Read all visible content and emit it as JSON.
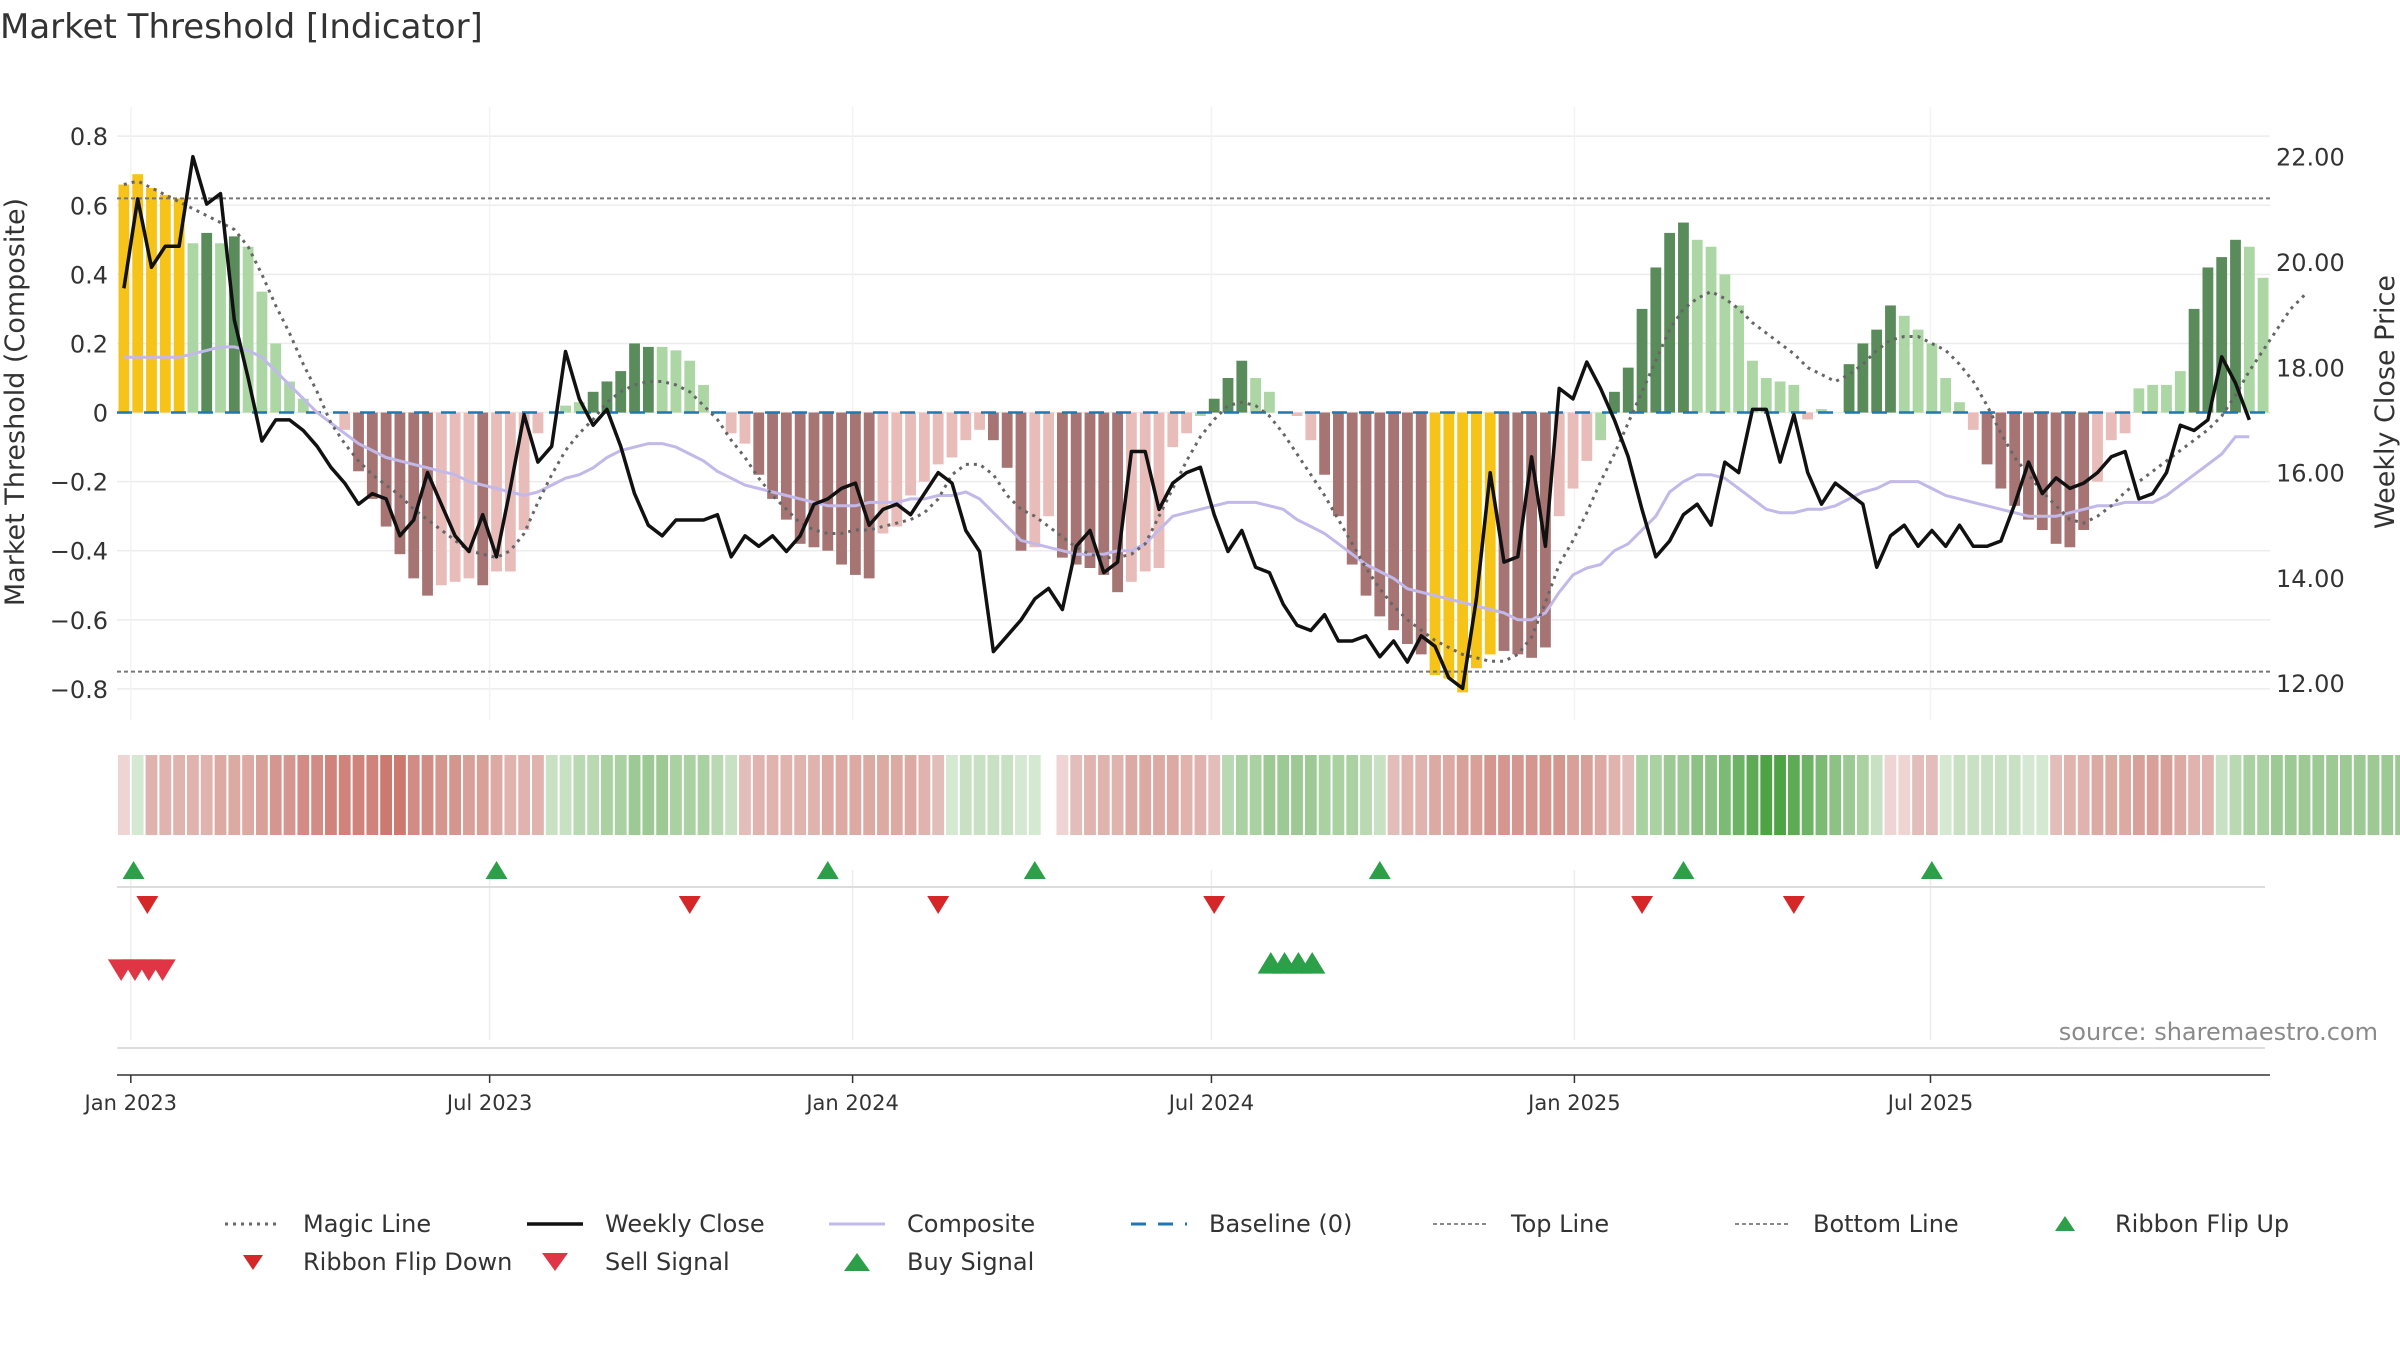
{
  "chart_data": {
    "type": "bar",
    "title": "Market Threshold [Indicator]",
    "ylabel_left": "Market Threshold (Composite)",
    "ylabel_right": "Weekly Close Price",
    "source": "source: sharemaestro.com",
    "y_left": {
      "ylim": [
        -0.89,
        0.87
      ],
      "ticks": [
        0.8,
        0.6,
        0.4,
        0.2,
        0,
        -0.2,
        -0.4,
        -0.6,
        -0.8
      ],
      "tick_labels": [
        "0.8",
        "0.6",
        "0.4",
        "0.2",
        "0",
        "−0.2",
        "−0.4",
        "−0.6",
        "−0.8"
      ]
    },
    "y_right": {
      "ylim": [
        11.3,
        22.85
      ],
      "ticks": [
        22,
        20,
        18,
        16,
        14,
        12
      ],
      "tick_labels": [
        "22.00",
        "20.00",
        "18.00",
        "16.00",
        "14.00",
        "12.00"
      ]
    },
    "x_ticks": [
      {
        "label": "Jan 2023",
        "week": 1
      },
      {
        "label": "Jul 2023",
        "week": 27
      },
      {
        "label": "Jan 2024",
        "week": 53.3
      },
      {
        "label": "Jul 2024",
        "week": 79.3
      },
      {
        "label": "Jan 2025",
        "week": 105.6
      },
      {
        "label": "Jul 2025",
        "week": 131.4
      }
    ],
    "top_line": 0.62,
    "bottom_line": -0.75,
    "composite_bars": [
      0.66,
      0.69,
      0.65,
      0.63,
      0.62,
      0.49,
      0.52,
      0.49,
      0.51,
      0.48,
      0.35,
      0.2,
      0.09,
      0.04,
      0,
      0,
      -0.05,
      -0.17,
      -0.25,
      -0.33,
      -0.41,
      -0.48,
      -0.53,
      -0.5,
      -0.49,
      -0.48,
      -0.5,
      -0.46,
      -0.46,
      -0.34,
      -0.06,
      0,
      0.02,
      0.03,
      0.06,
      0.09,
      0.12,
      0.2,
      0.19,
      0.19,
      0.18,
      0.15,
      0.08,
      0,
      -0.06,
      -0.09,
      -0.18,
      -0.25,
      -0.31,
      -0.38,
      -0.39,
      -0.4,
      -0.44,
      -0.47,
      -0.48,
      -0.35,
      -0.33,
      -0.24,
      -0.2,
      -0.15,
      -0.13,
      -0.08,
      -0.05,
      -0.08,
      -0.16,
      -0.4,
      -0.39,
      -0.3,
      -0.42,
      -0.44,
      -0.45,
      -0.47,
      -0.52,
      -0.49,
      -0.46,
      -0.45,
      -0.1,
      -0.06,
      -0.01,
      0.04,
      0.1,
      0.15,
      0.1,
      0.06,
      0,
      -0.01,
      -0.08,
      -0.18,
      -0.3,
      -0.44,
      -0.53,
      -0.59,
      -0.63,
      -0.67,
      -0.7,
      -0.76,
      -0.77,
      -0.81,
      -0.74,
      -0.7,
      -0.69,
      -0.7,
      -0.71,
      -0.68,
      -0.3,
      -0.22,
      -0.14,
      -0.08,
      0.06,
      0.13,
      0.3,
      0.42,
      0.52,
      0.55,
      0.5,
      0.48,
      0.4,
      0.31,
      0.15,
      0.1,
      0.09,
      0.08,
      -0.02,
      0.01,
      0,
      0.14,
      0.2,
      0.24,
      0.31,
      0.28,
      0.24,
      0.2,
      0.1,
      0.03,
      -0.05,
      -0.15,
      -0.22,
      -0.27,
      -0.31,
      -0.34,
      -0.38,
      -0.39,
      -0.34,
      -0.2,
      -0.08,
      -0.06,
      0.07,
      0.08,
      0.08,
      0.12,
      0.3,
      0.42,
      0.45,
      0.5,
      0.48,
      0.39
    ],
    "bar_colors": [
      "#f6c318",
      "#f6c318",
      "#f6c318",
      "#f6c318",
      "#f6c318",
      "#acd7a5",
      "#5a8c5b",
      "#acd7a5",
      "#5a8c5b",
      "#acd7a5",
      "#acd7a5",
      "#acd7a5",
      "#acd7a5",
      "#acd7a5",
      "#acd7a5",
      "#acd7a5",
      "#e8bdb9",
      "#a67573",
      "#a67573",
      "#a67573",
      "#a67573",
      "#a67573",
      "#a67573",
      "#e8bdb9",
      "#e8bdb9",
      "#e8bdb9",
      "#a67573",
      "#e8bdb9",
      "#e8bdb9",
      "#e8bdb9",
      "#e8bdb9",
      "#acd7a5",
      "#acd7a5",
      "#acd7a5",
      "#5a8c5b",
      "#5a8c5b",
      "#5a8c5b",
      "#5a8c5b",
      "#5a8c5b",
      "#acd7a5",
      "#acd7a5",
      "#acd7a5",
      "#acd7a5",
      "#acd7a5",
      "#e8bdb9",
      "#e8bdb9",
      "#a67573",
      "#a67573",
      "#a67573",
      "#a67573",
      "#a67573",
      "#a67573",
      "#a67573",
      "#a67573",
      "#a67573",
      "#e8bdb9",
      "#e8bdb9",
      "#e8bdb9",
      "#e8bdb9",
      "#e8bdb9",
      "#e8bdb9",
      "#e8bdb9",
      "#e8bdb9",
      "#a67573",
      "#a67573",
      "#a67573",
      "#e8bdb9",
      "#e8bdb9",
      "#a67573",
      "#a67573",
      "#a67573",
      "#a67573",
      "#a67573",
      "#e8bdb9",
      "#e8bdb9",
      "#e8bdb9",
      "#e8bdb9",
      "#e8bdb9",
      "#acd7a5",
      "#5a8c5b",
      "#5a8c5b",
      "#5a8c5b",
      "#acd7a5",
      "#acd7a5",
      "#acd7a5",
      "#e8bdb9",
      "#e8bdb9",
      "#a67573",
      "#a67573",
      "#a67573",
      "#a67573",
      "#a67573",
      "#a67573",
      "#a67573",
      "#a67573",
      "#f6c318",
      "#f6c318",
      "#f6c318",
      "#f6c318",
      "#f6c318",
      "#a67573",
      "#a67573",
      "#a67573",
      "#a67573",
      "#e8bdb9",
      "#e8bdb9",
      "#e8bdb9",
      "#acd7a5",
      "#5a8c5b",
      "#5a8c5b",
      "#5a8c5b",
      "#5a8c5b",
      "#5a8c5b",
      "#5a8c5b",
      "#acd7a5",
      "#acd7a5",
      "#acd7a5",
      "#acd7a5",
      "#acd7a5",
      "#acd7a5",
      "#acd7a5",
      "#acd7a5",
      "#e8bdb9",
      "#acd7a5",
      "#acd7a5",
      "#5a8c5b",
      "#5a8c5b",
      "#5a8c5b",
      "#5a8c5b",
      "#acd7a5",
      "#acd7a5",
      "#acd7a5",
      "#acd7a5",
      "#acd7a5",
      "#e8bdb9",
      "#a67573",
      "#a67573",
      "#a67573",
      "#a67573",
      "#a67573",
      "#a67573",
      "#a67573",
      "#a67573",
      "#e8bdb9",
      "#e8bdb9",
      "#e8bdb9",
      "#acd7a5",
      "#acd7a5",
      "#acd7a5",
      "#acd7a5",
      "#5a8c5b",
      "#5a8c5b",
      "#5a8c5b",
      "#5a8c5b",
      "#acd7a5",
      "#acd7a5"
    ],
    "weekly_close": [
      19.5,
      21.2,
      19.9,
      20.3,
      20.3,
      22.0,
      21.1,
      21.3,
      18.9,
      17.8,
      16.6,
      17.0,
      17.0,
      16.8,
      16.5,
      16.1,
      15.8,
      15.4,
      15.6,
      15.5,
      14.8,
      15.1,
      16.0,
      15.4,
      14.8,
      14.5,
      15.2,
      14.4,
      15.7,
      17.1,
      16.2,
      16.5,
      18.3,
      17.4,
      16.9,
      17.2,
      16.5,
      15.6,
      15.0,
      14.8,
      15.1,
      15.1,
      15.1,
      15.2,
      14.4,
      14.8,
      14.6,
      14.8,
      14.5,
      14.8,
      15.4,
      15.5,
      15.7,
      15.8,
      15.0,
      15.3,
      15.4,
      15.2,
      15.6,
      16.0,
      15.8,
      14.9,
      14.5,
      12.6,
      12.9,
      13.2,
      13.6,
      13.8,
      13.4,
      14.6,
      14.9,
      14.1,
      14.3,
      16.4,
      16.4,
      15.3,
      15.8,
      16.0,
      16.1,
      15.2,
      14.5,
      14.9,
      14.2,
      14.1,
      13.5,
      13.1,
      13.0,
      13.3,
      12.8,
      12.8,
      12.9,
      12.5,
      12.8,
      12.4,
      12.9,
      12.7,
      12.1,
      11.9,
      13.6,
      16.0,
      14.3,
      14.4,
      16.3,
      14.6,
      17.6,
      17.4,
      18.1,
      17.6,
      17.0,
      16.3,
      15.3,
      14.4,
      14.7,
      15.2,
      15.4,
      15.0,
      16.2,
      16.0,
      17.2,
      17.2,
      16.2,
      17.1,
      16.0,
      15.4,
      15.8,
      15.6,
      15.4,
      14.2,
      14.8,
      15.0,
      14.6,
      14.9,
      14.6,
      15.0,
      14.6,
      14.6,
      14.7,
      15.4,
      16.2,
      15.6,
      15.9,
      15.7,
      15.8,
      16.0,
      16.3,
      16.4,
      15.5,
      15.6,
      16.0,
      16.9,
      16.8,
      17.0,
      18.2,
      17.7,
      17.0
    ],
    "composite_line": [
      0.16,
      0.16,
      0.16,
      0.16,
      0.16,
      0.17,
      0.18,
      0.19,
      0.19,
      0.18,
      0.16,
      0.12,
      0.08,
      0.04,
      0,
      -0.03,
      -0.06,
      -0.09,
      -0.11,
      -0.13,
      -0.14,
      -0.15,
      -0.16,
      -0.17,
      -0.18,
      -0.2,
      -0.21,
      -0.22,
      -0.23,
      -0.24,
      -0.23,
      -0.21,
      -0.19,
      -0.18,
      -0.16,
      -0.13,
      -0.11,
      -0.1,
      -0.09,
      -0.09,
      -0.1,
      -0.12,
      -0.14,
      -0.17,
      -0.19,
      -0.21,
      -0.22,
      -0.23,
      -0.24,
      -0.25,
      -0.26,
      -0.27,
      -0.27,
      -0.27,
      -0.26,
      -0.26,
      -0.26,
      -0.25,
      -0.25,
      -0.24,
      -0.24,
      -0.23,
      -0.25,
      -0.29,
      -0.33,
      -0.37,
      -0.38,
      -0.39,
      -0.4,
      -0.41,
      -0.41,
      -0.41,
      -0.4,
      -0.4,
      -0.38,
      -0.34,
      -0.3,
      -0.29,
      -0.28,
      -0.27,
      -0.26,
      -0.26,
      -0.26,
      -0.27,
      -0.28,
      -0.31,
      -0.33,
      -0.35,
      -0.38,
      -0.41,
      -0.44,
      -0.46,
      -0.48,
      -0.51,
      -0.52,
      -0.53,
      -0.54,
      -0.55,
      -0.56,
      -0.57,
      -0.58,
      -0.6,
      -0.6,
      -0.58,
      -0.52,
      -0.47,
      -0.45,
      -0.44,
      -0.4,
      -0.38,
      -0.34,
      -0.3,
      -0.23,
      -0.2,
      -0.18,
      -0.18,
      -0.19,
      -0.22,
      -0.25,
      -0.28,
      -0.29,
      -0.29,
      -0.28,
      -0.28,
      -0.27,
      -0.25,
      -0.23,
      -0.22,
      -0.2,
      -0.2,
      -0.2,
      -0.22,
      -0.24,
      -0.25,
      -0.26,
      -0.27,
      -0.28,
      -0.29,
      -0.3,
      -0.3,
      -0.3,
      -0.29,
      -0.28,
      -0.27,
      -0.27,
      -0.26,
      -0.26,
      -0.26,
      -0.24,
      -0.21,
      -0.18,
      -0.15,
      -0.12,
      -0.07,
      -0.07
    ],
    "magic_line": [
      0.66,
      0.67,
      0.65,
      0.63,
      0.61,
      0.59,
      0.57,
      0.55,
      0.53,
      0.48,
      0.4,
      0.31,
      0.23,
      0.14,
      0.06,
      -0.03,
      -0.09,
      -0.14,
      -0.18,
      -0.21,
      -0.24,
      -0.28,
      -0.31,
      -0.34,
      -0.37,
      -0.4,
      -0.41,
      -0.42,
      -0.4,
      -0.35,
      -0.26,
      -0.18,
      -0.11,
      -0.06,
      -0.02,
      0.03,
      0.06,
      0.08,
      0.09,
      0.09,
      0.08,
      0.06,
      0.02,
      -0.02,
      -0.08,
      -0.13,
      -0.19,
      -0.24,
      -0.28,
      -0.32,
      -0.34,
      -0.35,
      -0.35,
      -0.34,
      -0.34,
      -0.33,
      -0.32,
      -0.31,
      -0.29,
      -0.25,
      -0.18,
      -0.15,
      -0.15,
      -0.18,
      -0.24,
      -0.28,
      -0.3,
      -0.33,
      -0.36,
      -0.39,
      -0.41,
      -0.42,
      -0.42,
      -0.41,
      -0.38,
      -0.3,
      -0.22,
      -0.14,
      -0.07,
      -0.02,
      0.02,
      0.03,
      0.02,
      -0.01,
      -0.06,
      -0.12,
      -0.18,
      -0.24,
      -0.31,
      -0.38,
      -0.45,
      -0.51,
      -0.56,
      -0.6,
      -0.63,
      -0.66,
      -0.68,
      -0.7,
      -0.71,
      -0.72,
      -0.72,
      -0.7,
      -0.65,
      -0.55,
      -0.44,
      -0.37,
      -0.29,
      -0.2,
      -0.12,
      -0.03,
      0.06,
      0.15,
      0.24,
      0.3,
      0.33,
      0.35,
      0.33,
      0.3,
      0.26,
      0.23,
      0.2,
      0.17,
      0.13,
      0.11,
      0.09,
      0.11,
      0.14,
      0.18,
      0.21,
      0.22,
      0.22,
      0.2,
      0.18,
      0.14,
      0.09,
      0.02,
      -0.06,
      -0.13,
      -0.18,
      -0.23,
      -0.27,
      -0.31,
      -0.32,
      -0.3,
      -0.27,
      -0.23,
      -0.2,
      -0.17,
      -0.14,
      -0.11,
      -0.08,
      -0.05,
      -0.01,
      0.05,
      0.12,
      0.18,
      0.24,
      0.3,
      0.34
    ],
    "ribbon_colors": [
      "#eed4d2",
      "#d5e9d2",
      "#e0b3ae",
      "#e0b3ae",
      "#e0b3ae",
      "#e0b3ae",
      "#e0b3ae",
      "#dca9a3",
      "#dca9a3",
      "#dca9a3",
      "#d9a09a",
      "#d59690",
      "#d59690",
      "#d28c85",
      "#d28c85",
      "#cf837b",
      "#cf837b",
      "#cf837b",
      "#cf837b",
      "#cc7970",
      "#cc7970",
      "#d28c85",
      "#d28c85",
      "#d59690",
      "#d59690",
      "#d9a09a",
      "#d9a09a",
      "#dca9a3",
      "#e0b3ae",
      "#e0b3ae",
      "#e0b3ae",
      "#c7e1c2",
      "#c7e1c2",
      "#b8d9b2",
      "#b8d9b2",
      "#a9d1a2",
      "#a9d1a2",
      "#9cc994",
      "#9cc994",
      "#9cc994",
      "#a9d1a2",
      "#a9d1a2",
      "#a9d1a2",
      "#b8d9b2",
      "#c7e1c2",
      "#e3bdb9",
      "#e0b3ae",
      "#e0b3ae",
      "#e0b3ae",
      "#e0b3ae",
      "#e0b3ae",
      "#dca9a3",
      "#dca9a3",
      "#dca9a3",
      "#dca9a3",
      "#dca9a3",
      "#dca9a3",
      "#dca9a3",
      "#e0b3ae",
      "#e3bdb9",
      "#d5e9d2",
      "#c7e1c2",
      "#c7e1c2",
      "#c7e1c2",
      "#c7e1c2",
      "#d5e9d2",
      "#d5e9d2",
      "#ffffff",
      "#eed4d2",
      "#e3bdb9",
      "#e0b3ae",
      "#e0b3ae",
      "#e0b3ae",
      "#dca9a3",
      "#dca9a3",
      "#dca9a3",
      "#dca9a3",
      "#e0b3ae",
      "#e0b3ae",
      "#e3bdb9",
      "#b8d9b2",
      "#a9d1a2",
      "#a9d1a2",
      "#9cc994",
      "#9cc994",
      "#9cc994",
      "#9cc994",
      "#a9d1a2",
      "#a9d1a2",
      "#a9d1a2",
      "#b8d9b2",
      "#c7e1c2",
      "#e3bdb9",
      "#e0b3ae",
      "#e0b3ae",
      "#dca9a3",
      "#dca9a3",
      "#d9a09a",
      "#d9a09a",
      "#d59690",
      "#d59690",
      "#d59690",
      "#d59690",
      "#d59690",
      "#d59690",
      "#d9a09a",
      "#d9a09a",
      "#dca9a3",
      "#e0b3ae",
      "#e3bdb9",
      "#a9d1a2",
      "#a9d1a2",
      "#9cc994",
      "#9cc994",
      "#8cc283",
      "#8cc283",
      "#7cbb73",
      "#6cb363",
      "#5dab54",
      "#4ea445",
      "#4ea445",
      "#5dab54",
      "#6cb363",
      "#7cbb73",
      "#8cc283",
      "#9cc994",
      "#a9d1a2",
      "#c7e1c2",
      "#eed4d2",
      "#eed4d2",
      "#e3bdb9",
      "#e3bdb9",
      "#d5e9d2",
      "#c7e1c2",
      "#c7e1c2",
      "#c7e1c2",
      "#c7e1c2",
      "#c7e1c2",
      "#d5e9d2",
      "#d5e9d2",
      "#e3bdb9",
      "#e0b3ae",
      "#e0b3ae",
      "#dca9a3",
      "#dca9a3",
      "#dca9a3",
      "#d9a09a",
      "#d9a09a",
      "#d9a09a",
      "#dca9a3",
      "#e0b3ae",
      "#e0b3ae",
      "#c7e1c2",
      "#b8d9b2",
      "#a9d1a2",
      "#a9d1a2",
      "#9cc994",
      "#9cc994",
      "#9cc994",
      "#9cc994",
      "#9cc994",
      "#9cc994",
      "#9cc994",
      "#9cc994",
      "#9cc994",
      "#9cc994"
    ],
    "ribbon_flip_up": [
      1.2,
      27.5,
      51.5,
      66.5,
      91.5,
      113.5,
      131.5
    ],
    "ribbon_flip_down": [
      2.2,
      41.5,
      59.5,
      79.5,
      110.5,
      121.5
    ],
    "sell_signals": [
      0.3,
      1.3,
      2.3,
      3.3
    ],
    "buy_signals": [
      83.6,
      84.6,
      85.6,
      86.6
    ],
    "legend": [
      {
        "label": "Magic Line",
        "icon": "dotted-line"
      },
      {
        "label": "Weekly Close",
        "icon": "solid-line"
      },
      {
        "label": "Composite",
        "icon": "solid-line-lavender"
      },
      {
        "label": "Baseline (0)",
        "icon": "dashed-line"
      },
      {
        "label": "Top Line",
        "icon": "dotted-line-light"
      },
      {
        "label": "Bottom Line",
        "icon": "dotted-line-light"
      },
      {
        "label": "Ribbon Flip Up",
        "icon": "triangle-up-icon"
      },
      {
        "label": "Ribbon Flip Down",
        "icon": "triangle-down-icon"
      },
      {
        "label": "Sell Signal",
        "icon": "triangle-down-icon"
      },
      {
        "label": "Buy Signal",
        "icon": "triangle-up-icon"
      }
    ],
    "colors": {
      "weekly_close": "#111111",
      "magic_line": "#666666",
      "composite": "#c2b8ea",
      "baseline": "#1f77b4",
      "threshold_lines": "#777777",
      "flip_up": "#2ca049",
      "flip_down": "#d62728",
      "sell": "#e03545",
      "buy": "#2ca049"
    }
  }
}
